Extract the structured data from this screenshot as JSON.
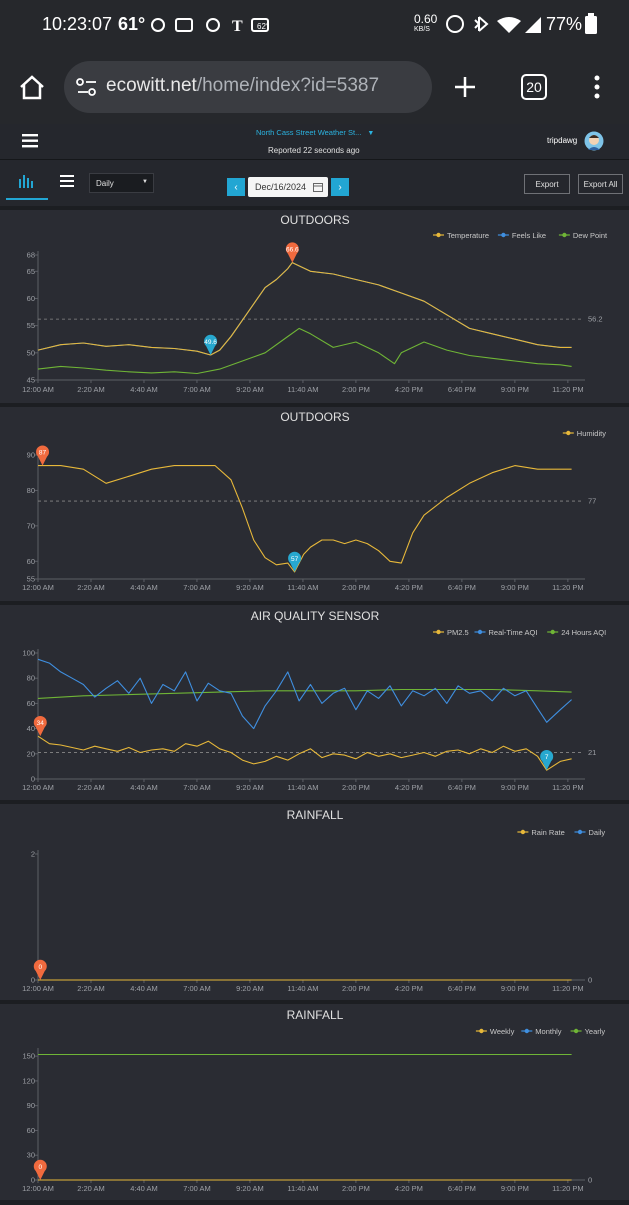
{
  "status_bar": {
    "time": "10:23:07",
    "temp": "61°",
    "small_temp": "62°",
    "net_speed": "0.60",
    "net_unit": "KB/S",
    "battery": "77%"
  },
  "browser": {
    "url_domain": "ecowitt.net",
    "url_path": "/home/index?id=5387",
    "tab_count": "20"
  },
  "app_header": {
    "station": "North Cass Street Weather St...",
    "reported": "Reported 22 seconds ago",
    "user": "tripdawg"
  },
  "toolbar": {
    "period": "Daily",
    "date": "Dec/16/2024",
    "export": "Export",
    "export_all": "Export All"
  },
  "colors": {
    "yellow": "#e7b83a",
    "blue": "#3f8fe0",
    "green": "#6fb536",
    "marker_high": "#f06a3e",
    "marker_low": "#27a8cf",
    "accent": "#22a6d3"
  },
  "x_ticks": [
    "12:00 AM",
    "2:20 AM",
    "4:40 AM",
    "7:00 AM",
    "9:20 AM",
    "11:40 AM",
    "2:00 PM",
    "4:20 PM",
    "6:40 PM",
    "9:00 PM",
    "11:20 PM"
  ],
  "chart_data": [
    {
      "type": "line",
      "title": "OUTDOORS",
      "legend": [
        "Temperature",
        "Feels Like",
        "Dew Point"
      ],
      "yticks": [
        45,
        50,
        55,
        60,
        65,
        68
      ],
      "ylim": [
        45,
        68
      ],
      "ref_line": 56.2,
      "ref_label": "56.2",
      "markers": [
        {
          "label": "66.6",
          "kind": "high",
          "x_hour": 11.2,
          "y": 66.6
        },
        {
          "label": "49.6",
          "kind": "low",
          "x_hour": 7.6,
          "y": 49.6
        }
      ],
      "series": [
        {
          "name": "Temperature",
          "color_key": "yellow",
          "hours": [
            0,
            1,
            2,
            3,
            4,
            5,
            6,
            7,
            7.6,
            8,
            8.5,
            9,
            9.5,
            10,
            10.5,
            11,
            11.2,
            11.5,
            12,
            13,
            14,
            15,
            16,
            17,
            18,
            19,
            20,
            21,
            22,
            23,
            23.5
          ],
          "values": [
            50.5,
            51.5,
            51.8,
            51.2,
            51.5,
            51,
            50.8,
            50.3,
            49.6,
            50.5,
            53,
            56,
            59,
            62,
            63.5,
            65.5,
            66.6,
            66,
            65,
            64.5,
            63.5,
            62.5,
            61,
            59.5,
            57,
            54.5,
            53.5,
            52.5,
            51.5,
            51,
            51
          ]
        },
        {
          "name": "Feels Like",
          "color_key": "blue",
          "hours": [
            0,
            1,
            2,
            3,
            4,
            5,
            6,
            7,
            7.6,
            8,
            8.5,
            9,
            9.5,
            10,
            10.5,
            11,
            11.2,
            11.5,
            12,
            13,
            14,
            15,
            16,
            17,
            18,
            19,
            20,
            21,
            22,
            23,
            23.5
          ],
          "values": [
            50.5,
            51.5,
            51.8,
            51.2,
            51.5,
            51,
            50.8,
            50.3,
            49.6,
            50.5,
            53,
            56,
            59,
            62,
            63.5,
            65.5,
            66.6,
            66,
            65,
            64.5,
            63.5,
            62.5,
            61,
            59.5,
            57,
            54.5,
            53.5,
            52.5,
            51.5,
            51,
            51
          ]
        },
        {
          "name": "Dew Point",
          "color_key": "green",
          "hours": [
            0,
            1,
            2,
            3,
            4,
            5,
            6,
            7,
            8,
            9,
            10,
            11,
            11.5,
            12,
            13,
            14,
            15,
            15.7,
            16,
            17,
            18,
            19,
            20,
            21,
            22,
            23,
            23.5
          ],
          "values": [
            47,
            47.5,
            47.2,
            46.8,
            46.5,
            46.3,
            46.5,
            46.2,
            47,
            48.5,
            50,
            53,
            54.5,
            53.5,
            51,
            52,
            50,
            48,
            50,
            52,
            50.5,
            49.5,
            49,
            48.5,
            48,
            47.8,
            47.5
          ]
        }
      ]
    },
    {
      "type": "line",
      "title": "OUTDOORS",
      "legend": [
        "Humidity"
      ],
      "yticks": [
        55,
        60,
        70,
        80,
        90
      ],
      "ylim": [
        55,
        90
      ],
      "ref_line": 77,
      "ref_label": "77",
      "markers": [
        {
          "label": "87",
          "kind": "high",
          "x_hour": 0.2,
          "y": 87
        },
        {
          "label": "57",
          "kind": "low",
          "x_hour": 11.3,
          "y": 57
        }
      ],
      "series": [
        {
          "name": "Humidity",
          "color_key": "yellow",
          "hours": [
            0,
            1,
            2,
            3,
            4,
            5,
            6,
            7,
            7.8,
            8.5,
            9,
            9.5,
            10,
            10.5,
            11,
            11.3,
            11.7,
            12,
            12.5,
            13,
            13.5,
            14,
            14.5,
            15,
            15.5,
            16,
            16.5,
            17,
            18,
            19,
            20,
            21,
            22,
            23,
            23.5
          ],
          "values": [
            87,
            87,
            86,
            82,
            84,
            86,
            87,
            87,
            87,
            83,
            75,
            66,
            61,
            59,
            59.5,
            57,
            62,
            64,
            66,
            66,
            65,
            66,
            65,
            63,
            60,
            59.5,
            68,
            73,
            78,
            82,
            85,
            87,
            86,
            86,
            86
          ]
        }
      ]
    },
    {
      "type": "line",
      "title": "AIR QUALITY SENSOR",
      "legend": [
        "PM2.5",
        "Real-Time AQI",
        "24 Hours AQI"
      ],
      "yticks": [
        0,
        20,
        40,
        60,
        80,
        100
      ],
      "ylim": [
        0,
        100
      ],
      "ref_line": 21,
      "ref_label": "21",
      "markers": [
        {
          "label": "34",
          "kind": "high",
          "x_hour": 0.1,
          "y": 34
        },
        {
          "label": "7",
          "kind": "low",
          "x_hour": 22.4,
          "y": 7
        }
      ],
      "series": [
        {
          "name": "PM2.5",
          "color_key": "yellow",
          "hours": [
            0,
            0.5,
            1,
            1.5,
            2,
            2.5,
            3,
            3.5,
            4,
            4.5,
            5,
            5.5,
            6,
            6.5,
            7,
            7.5,
            8,
            8.5,
            9,
            9.5,
            10,
            10.5,
            11,
            11.5,
            12,
            12.5,
            13,
            13.5,
            14,
            14.5,
            15,
            15.5,
            16,
            16.5,
            17,
            17.5,
            18,
            18.5,
            19,
            19.5,
            20,
            20.5,
            21,
            21.5,
            22,
            22.4,
            23,
            23.5
          ],
          "values": [
            34,
            28,
            27,
            25,
            23,
            26,
            24,
            22,
            25,
            21,
            23,
            24,
            22,
            28,
            26,
            30,
            24,
            21,
            15,
            12,
            14,
            18,
            15,
            20,
            24,
            17,
            20,
            19,
            16,
            21,
            18,
            20,
            17,
            19,
            21,
            18,
            22,
            23,
            20,
            24,
            21,
            26,
            22,
            24,
            18,
            7,
            14,
            16
          ]
        },
        {
          "name": "Real-Time AQI",
          "color_key": "blue",
          "hours": [
            0,
            0.5,
            1,
            1.5,
            2,
            2.5,
            3,
            3.5,
            4,
            4.5,
            5,
            5.5,
            6,
            6.5,
            7,
            7.5,
            8,
            8.5,
            9,
            9.5,
            10,
            10.5,
            11,
            11.5,
            12,
            12.5,
            13,
            13.5,
            14,
            14.5,
            15,
            15.5,
            16,
            16.5,
            17,
            17.5,
            18,
            18.5,
            19,
            19.5,
            20,
            20.5,
            21,
            21.5,
            22,
            22.4,
            23,
            23.5
          ],
          "values": [
            95,
            92,
            85,
            80,
            75,
            65,
            72,
            78,
            68,
            80,
            60,
            75,
            70,
            85,
            62,
            76,
            70,
            68,
            50,
            40,
            58,
            70,
            85,
            62,
            75,
            60,
            68,
            72,
            55,
            70,
            64,
            74,
            58,
            70,
            66,
            72,
            60,
            74,
            68,
            70,
            62,
            72,
            66,
            70,
            56,
            45,
            55,
            63
          ]
        },
        {
          "name": "24 Hours AQI",
          "color_key": "green",
          "hours": [
            0,
            2,
            4,
            6,
            8,
            10,
            12,
            14,
            16,
            18,
            20,
            22,
            23.5
          ],
          "values": [
            64,
            66,
            67,
            68,
            69,
            70,
            70,
            70,
            71,
            71,
            71,
            70,
            69
          ]
        }
      ]
    },
    {
      "type": "line",
      "title": "RAINFALL",
      "legend": [
        "Rain Rate",
        "Daily"
      ],
      "yticks": [
        0,
        2
      ],
      "ylim": [
        0,
        2
      ],
      "ref_line": null,
      "ref_label": "0",
      "markers": [
        {
          "label": "0",
          "kind": "high",
          "x_hour": 0.1,
          "y": 0
        }
      ],
      "series": [
        {
          "name": "Rain Rate",
          "color_key": "yellow",
          "hours": [
            0,
            23.5
          ],
          "values": [
            0,
            0
          ]
        },
        {
          "name": "Daily",
          "color_key": "blue",
          "hours": [
            0,
            23.5
          ],
          "values": [
            0,
            0
          ]
        }
      ]
    },
    {
      "type": "line",
      "title": "RAINFALL",
      "legend": [
        "Weekly",
        "Monthly",
        "Yearly"
      ],
      "yticks": [
        0,
        30,
        60,
        90,
        120,
        150
      ],
      "ylim": [
        0,
        155
      ],
      "ref_line": null,
      "ref_label": "0",
      "markers": [
        {
          "label": "0",
          "kind": "high",
          "x_hour": 0.1,
          "y": 0
        }
      ],
      "series": [
        {
          "name": "Weekly",
          "color_key": "yellow",
          "hours": [
            0,
            23.5
          ],
          "values": [
            0,
            0
          ]
        },
        {
          "name": "Monthly",
          "color_key": "blue",
          "hours": [
            0,
            23.5
          ],
          "values": [
            0,
            0
          ]
        },
        {
          "name": "Yearly",
          "color_key": "green",
          "hours": [
            0,
            23.5
          ],
          "values": [
            152,
            152
          ]
        }
      ]
    }
  ]
}
